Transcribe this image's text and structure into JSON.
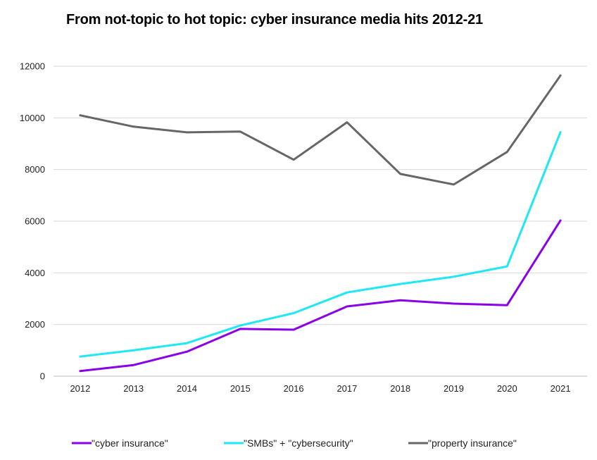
{
  "chart_data": {
    "type": "line",
    "title": "From not-topic to hot topic: cyber insurance media hits 2012-21",
    "xlabel": "",
    "ylabel": "",
    "categories": [
      "2012",
      "2013",
      "2014",
      "2015",
      "2016",
      "2017",
      "2018",
      "2019",
      "2020",
      "2021"
    ],
    "yticks": [
      "0",
      "2000",
      "4000",
      "6000",
      "8000",
      "10000",
      "12000"
    ],
    "ylim": [
      0,
      12000
    ],
    "grid": "horizontal",
    "legend_position": "bottom",
    "series": [
      {
        "name": "\"cyber insurance\"",
        "color": "#8b00e8",
        "values": [
          200,
          430,
          950,
          1830,
          1800,
          2700,
          2940,
          2810,
          2750,
          6030
        ]
      },
      {
        "name": "\"SMBs\" + \"cybersecurity\"",
        "color": "#1ee8f5",
        "values": [
          760,
          1000,
          1280,
          1960,
          2440,
          3240,
          3570,
          3850,
          4250,
          9450
        ]
      },
      {
        "name": "\"property insurance\"",
        "color": "#666666",
        "values": [
          10100,
          9660,
          9440,
          9470,
          8380,
          9830,
          7830,
          7420,
          8680,
          11640
        ]
      }
    ]
  }
}
